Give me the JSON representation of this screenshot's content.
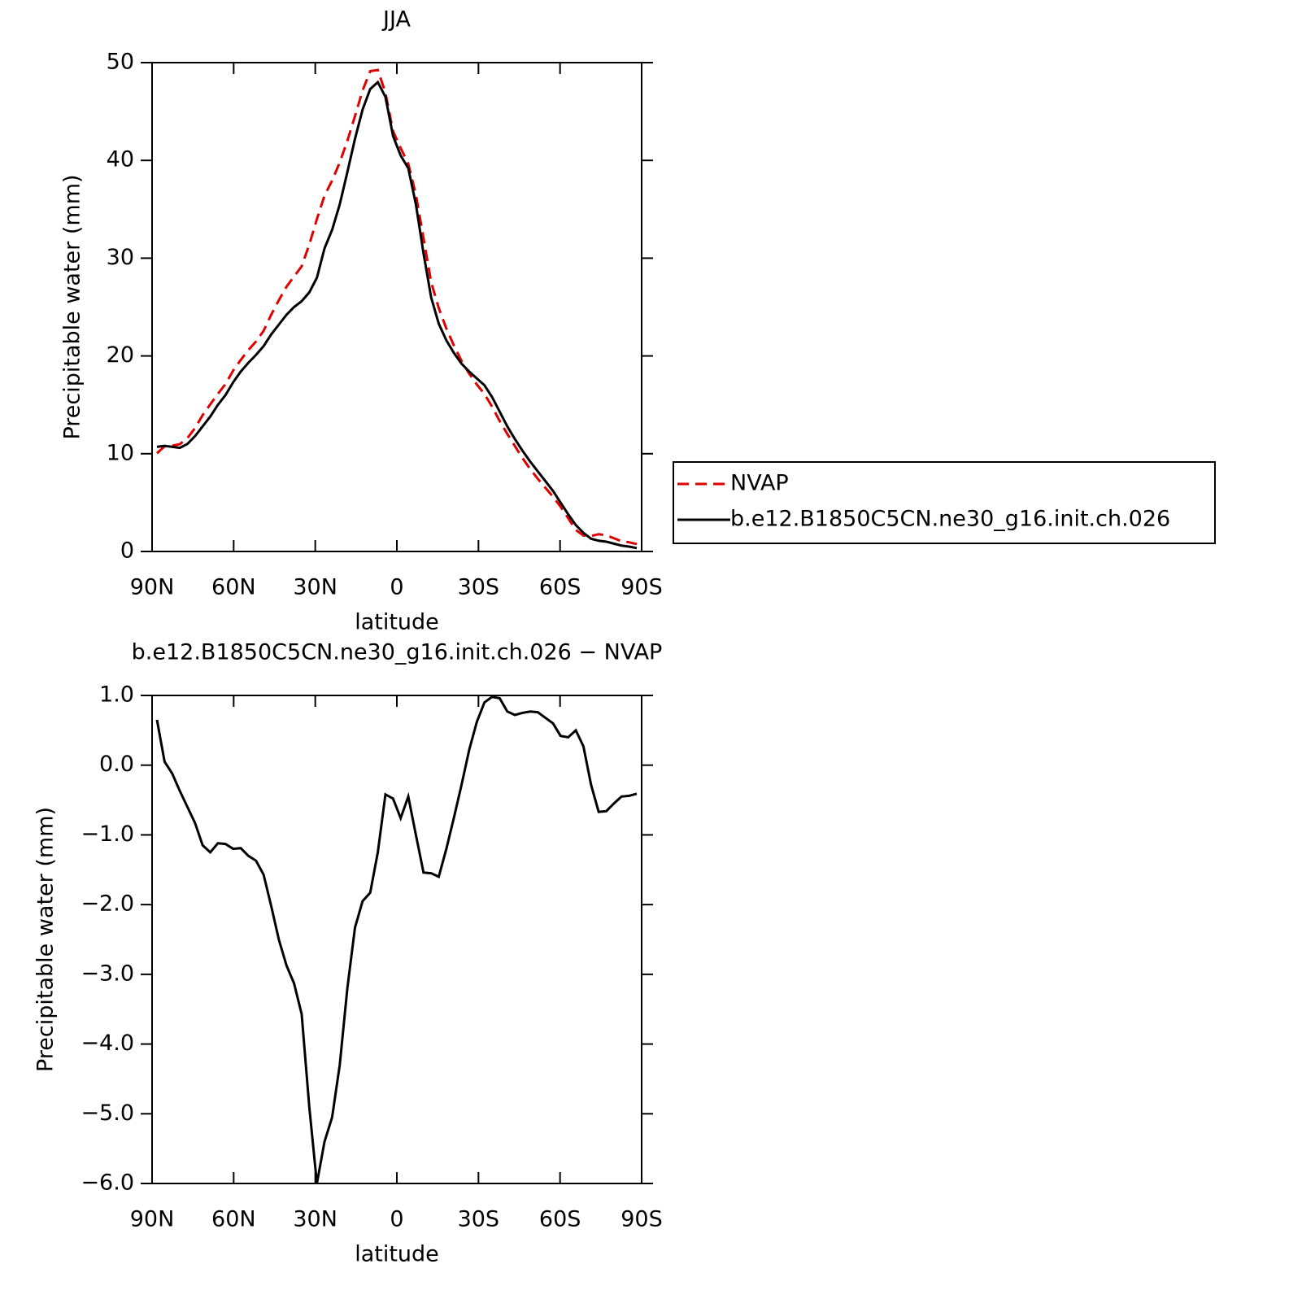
{
  "chart_data": [
    {
      "type": "line",
      "title": "JJA",
      "xlabel": "latitude",
      "ylabel": "Precipitable water (mm)",
      "x": [
        88.2,
        85.4,
        82.6,
        79.8,
        77,
        74.2,
        71.4,
        68.6,
        65.8,
        63,
        60.2,
        57.4,
        54.6,
        51.8,
        49,
        46.2,
        43.4,
        40.6,
        37.8,
        35,
        32.2,
        29.4,
        26.6,
        23.8,
        21,
        18.2,
        15.4,
        12.6,
        9.8,
        7,
        4.2,
        1.4,
        -1.4,
        -4.2,
        -7,
        -9.8,
        -12.6,
        -15.4,
        -18.2,
        -21,
        -23.8,
        -26.6,
        -29.4,
        -32.2,
        -35,
        -37.8,
        -40.6,
        -43.4,
        -46.2,
        -49,
        -51.8,
        -54.6,
        -57.4,
        -60.2,
        -63,
        -65.8,
        -68.6,
        -71.4,
        -74.2,
        -77,
        -79.8,
        -82.6,
        -85.4,
        -88.2
      ],
      "xlim": [
        90,
        -90
      ],
      "xticks": [
        {
          "value": 90,
          "label": "90N"
        },
        {
          "value": 60,
          "label": "60N"
        },
        {
          "value": 30,
          "label": "30N"
        },
        0,
        {
          "value": -30,
          "label": "30S"
        },
        {
          "value": -60,
          "label": "60S"
        },
        {
          "value": -90,
          "label": "90S"
        }
      ],
      "ylim": [
        0,
        50
      ],
      "yticks": [
        0,
        10,
        20,
        30,
        40,
        50
      ],
      "legend": true,
      "series": [
        {
          "name": "NVAP",
          "color": "#e00000",
          "dashed": true,
          "values": [
            10.05,
            10.75,
            10.82,
            10.97,
            11.6,
            12.63,
            13.95,
            15.05,
            16.12,
            17.13,
            18.5,
            19.59,
            20.6,
            21.47,
            22.57,
            24.22,
            25.7,
            27.07,
            28.13,
            29.17,
            31.4,
            34,
            36.4,
            37.95,
            39.8,
            42,
            44.53,
            47.15,
            49.13,
            49.25,
            46.92,
            42.98,
            41.26,
            39.65,
            36.5,
            32.04,
            27.55,
            24.9,
            22.8,
            21.05,
            19.48,
            18.18,
            17.08,
            16.1,
            14.82,
            13.34,
            12.03,
            10.78,
            9.55,
            8.43,
            7.44,
            6.52,
            5.6,
            4.58,
            3.4,
            2.2,
            1.63,
            1.58,
            1.77,
            1.66,
            1.35,
            1.05,
            0.94,
            0.76
          ]
        },
        {
          "name": "b.e12.B1850C5CN.ne30_g16.init.ch.026",
          "color": "#000000",
          "dashed": false,
          "values": [
            10.7,
            10.8,
            10.7,
            10.6,
            11,
            11.8,
            12.8,
            13.8,
            15,
            16,
            17.3,
            18.4,
            19.3,
            20.1,
            21,
            22.2,
            23.2,
            24.2,
            25,
            25.6,
            26.5,
            28,
            31,
            32.9,
            35.5,
            38.8,
            42.2,
            45.2,
            47.3,
            48,
            46.5,
            42.5,
            40.5,
            39.2,
            35.5,
            30.5,
            26,
            23.3,
            21.6,
            20.3,
            19.2,
            18.4,
            17.7,
            17,
            15.8,
            14.3,
            12.8,
            11.5,
            10.3,
            9.2,
            8.2,
            7.2,
            6.2,
            5,
            3.8,
            2.7,
            1.9,
            1.3,
            1.1,
            1,
            0.8,
            0.6,
            0.5,
            0.35
          ]
        }
      ]
    },
    {
      "type": "line",
      "title": "b.e12.B1850C5CN.ne30_g16.init.ch.026 − NVAP",
      "xlabel": "latitude",
      "ylabel": "Precipitable water (mm)",
      "x": [
        88.2,
        85.4,
        82.6,
        79.8,
        77,
        74.2,
        71.4,
        68.6,
        65.8,
        63,
        60.2,
        57.4,
        54.6,
        51.8,
        49,
        46.2,
        43.4,
        40.6,
        37.8,
        35,
        32.2,
        29.4,
        26.6,
        23.8,
        21,
        18.2,
        15.4,
        12.6,
        9.8,
        7,
        4.2,
        1.4,
        -1.4,
        -4.2,
        -7,
        -9.8,
        -12.6,
        -15.4,
        -18.2,
        -21,
        -23.8,
        -26.6,
        -29.4,
        -32.2,
        -35,
        -37.8,
        -40.6,
        -43.4,
        -46.2,
        -49,
        -51.8,
        -54.6,
        -57.4,
        -60.2,
        -63,
        -65.8,
        -68.6,
        -71.4,
        -74.2,
        -77,
        -79.8,
        -82.6,
        -85.4,
        -88.2
      ],
      "xlim": [
        90,
        -90
      ],
      "xticks": [
        {
          "value": 90,
          "label": "90N"
        },
        {
          "value": 60,
          "label": "60N"
        },
        {
          "value": 30,
          "label": "30N"
        },
        0,
        {
          "value": -30,
          "label": "30S"
        },
        {
          "value": -60,
          "label": "60S"
        },
        {
          "value": -90,
          "label": "90S"
        }
      ],
      "ylim": [
        -6,
        1
      ],
      "yticks": [
        {
          "value": 1,
          "label": "1.0"
        },
        {
          "value": 0,
          "label": "0.0"
        },
        {
          "value": -1,
          "label": "−1.0"
        },
        {
          "value": -2,
          "label": "−2.0"
        },
        {
          "value": -3,
          "label": "−3.0"
        },
        {
          "value": -4,
          "label": "−4.0"
        },
        {
          "value": -5,
          "label": "−5.0"
        },
        {
          "value": -6,
          "label": "−6.0"
        }
      ],
      "legend": false,
      "series": [
        {
          "color": "#000000",
          "dashed": false,
          "values": [
            0.65,
            0.05,
            -0.12,
            -0.37,
            -0.6,
            -0.83,
            -1.15,
            -1.25,
            -1.12,
            -1.13,
            -1.2,
            -1.19,
            -1.3,
            -1.37,
            -1.57,
            -2.02,
            -2.5,
            -2.87,
            -3.13,
            -3.57,
            -4.9,
            -6,
            -5.4,
            -5.05,
            -4.3,
            -3.2,
            -2.33,
            -1.95,
            -1.83,
            -1.25,
            -0.42,
            -0.48,
            -0.76,
            -0.45,
            -1,
            -1.54,
            -1.55,
            -1.6,
            -1.2,
            -0.75,
            -0.28,
            0.22,
            0.62,
            0.9,
            0.98,
            0.96,
            0.77,
            0.72,
            0.75,
            0.77,
            0.76,
            0.68,
            0.6,
            0.42,
            0.4,
            0.5,
            0.27,
            -0.28,
            -0.67,
            -0.66,
            -0.55,
            -0.45,
            -0.44,
            -0.41
          ]
        }
      ]
    }
  ]
}
